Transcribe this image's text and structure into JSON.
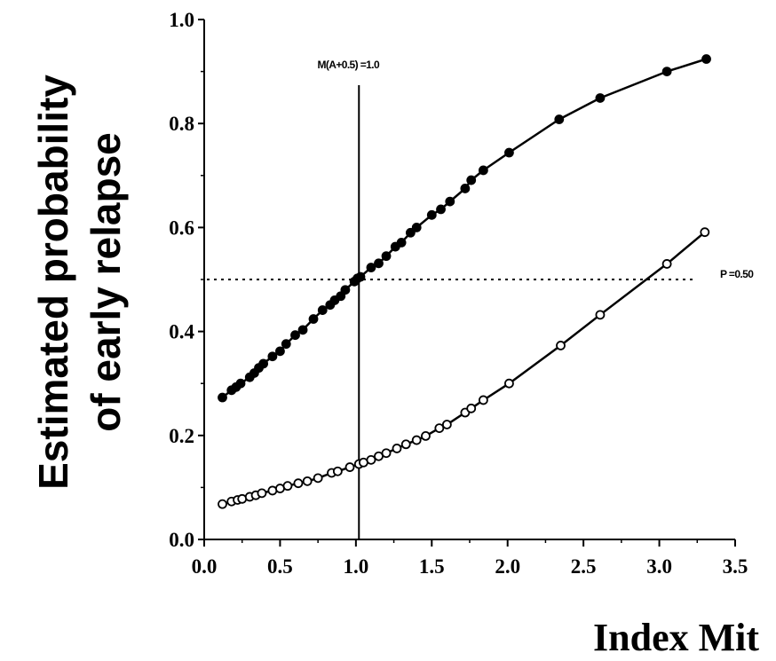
{
  "chart_data": {
    "type": "scatter",
    "ylabel": [
      "Estimated probability",
      "of early relapse"
    ],
    "xlabel": "Index Mit",
    "xlim": [
      0,
      3.5
    ],
    "ylim": [
      0,
      1.0
    ],
    "xticks": [
      "0.0",
      "0.5",
      "1.0",
      "1.5",
      "2.0",
      "2.5",
      "3.0",
      "3.5"
    ],
    "yticks": [
      "0.0",
      "0.2",
      "0.4",
      "0.6",
      "0.8",
      "1.0"
    ],
    "grid": false,
    "annotations": {
      "vline": {
        "x": 1.02,
        "label": "M(A+0.5) =1.0"
      },
      "hline": {
        "y": 0.5,
        "label": "P =0.50"
      }
    },
    "series": [
      {
        "marker": "filled",
        "color": "#000000",
        "x": [
          0.12,
          0.18,
          0.21,
          0.24,
          0.3,
          0.33,
          0.36,
          0.39,
          0.45,
          0.5,
          0.54,
          0.6,
          0.65,
          0.72,
          0.78,
          0.83,
          0.86,
          0.9,
          0.93,
          0.99,
          1.01,
          1.03,
          1.1,
          1.15,
          1.2,
          1.26,
          1.3,
          1.36,
          1.4,
          1.5,
          1.56,
          1.62,
          1.72,
          1.76,
          1.84,
          2.01,
          2.34,
          2.61,
          3.05,
          3.31
        ],
        "y": [
          0.273,
          0.287,
          0.293,
          0.3,
          0.312,
          0.32,
          0.33,
          0.338,
          0.352,
          0.362,
          0.376,
          0.393,
          0.403,
          0.424,
          0.441,
          0.451,
          0.46,
          0.468,
          0.48,
          0.496,
          0.502,
          0.505,
          0.523,
          0.531,
          0.545,
          0.563,
          0.571,
          0.59,
          0.6,
          0.624,
          0.635,
          0.65,
          0.675,
          0.691,
          0.71,
          0.744,
          0.808,
          0.849,
          0.9,
          0.924
        ]
      },
      {
        "marker": "open",
        "color": "#000000",
        "x": [
          0.12,
          0.18,
          0.22,
          0.25,
          0.3,
          0.34,
          0.38,
          0.45,
          0.5,
          0.55,
          0.62,
          0.68,
          0.75,
          0.84,
          0.88,
          0.96,
          1.02,
          1.05,
          1.1,
          1.15,
          1.2,
          1.27,
          1.33,
          1.4,
          1.46,
          1.55,
          1.6,
          1.72,
          1.76,
          1.84,
          2.01,
          2.35,
          2.61,
          3.05,
          3.3
        ],
        "y": [
          0.068,
          0.073,
          0.076,
          0.078,
          0.082,
          0.085,
          0.089,
          0.094,
          0.098,
          0.103,
          0.108,
          0.112,
          0.118,
          0.128,
          0.131,
          0.139,
          0.145,
          0.148,
          0.153,
          0.16,
          0.166,
          0.175,
          0.183,
          0.191,
          0.199,
          0.214,
          0.221,
          0.244,
          0.252,
          0.268,
          0.3,
          0.373,
          0.432,
          0.53,
          0.591
        ]
      }
    ]
  }
}
